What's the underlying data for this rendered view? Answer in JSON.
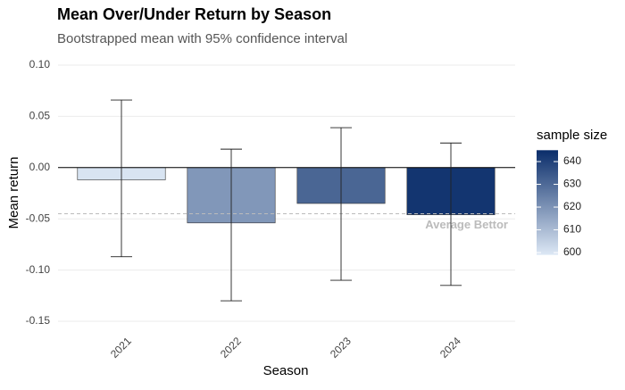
{
  "chart_data": {
    "type": "bar",
    "title": "Mean Over/Under Return by Season",
    "subtitle": "Bootstrapped mean with 95% confidence interval",
    "x_label": "Season",
    "y_label": "Mean return",
    "categories": [
      "2021",
      "2022",
      "2023",
      "2024"
    ],
    "values": [
      -0.012,
      -0.054,
      -0.035,
      -0.046
    ],
    "ci_lower": [
      -0.087,
      -0.13,
      -0.11,
      -0.115
    ],
    "ci_upper": [
      0.066,
      0.018,
      0.039,
      0.024
    ],
    "sample_size": [
      600,
      619,
      631,
      643
    ],
    "ylim": [
      -0.16,
      0.11
    ],
    "yticks": [
      {
        "value": 0.1,
        "label": "0.10"
      },
      {
        "value": 0.05,
        "label": "0.05"
      },
      {
        "value": 0,
        "label": "0.00"
      },
      {
        "value": -0.05,
        "label": "-0.05"
      },
      {
        "value": -0.1,
        "label": "-0.10"
      },
      {
        "value": -0.15,
        "label": "-0.15"
      }
    ],
    "grid": true,
    "reference_line": {
      "value": -0.045,
      "label": "Average Bettor",
      "color": "#bbbbbb"
    },
    "color_scale": {
      "name": "sample size",
      "lim": [
        599,
        645
      ],
      "ticks": [
        600,
        610,
        620,
        630,
        640
      ],
      "colors": [
        "#dde8f5",
        "#0a2d6a"
      ]
    }
  }
}
